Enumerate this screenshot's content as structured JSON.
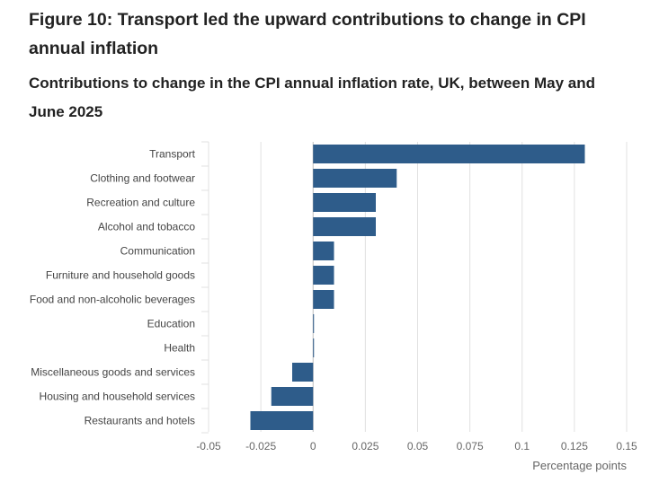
{
  "figure": {
    "title": "Figure 10: Transport led the upward contributions to change in CPI annual inflation",
    "subtitle": "Contributions to change in the CPI annual inflation rate, UK, between May and June 2025"
  },
  "colors": {
    "bar": "#2e5c8a",
    "grid": "#e0e0e0",
    "zero_line": "#bfbfbf",
    "text": "#444444",
    "axis_text": "#666666"
  },
  "chart_data": {
    "type": "bar",
    "orientation": "horizontal",
    "categories": [
      "Transport",
      "Clothing and footwear",
      "Recreation and culture",
      "Alcohol and tobacco",
      "Communication",
      "Furniture and household goods",
      "Food and non-alcoholic beverages",
      "Education",
      "Health",
      "Miscellaneous goods and services",
      "Housing and household services",
      "Restaurants and hotels"
    ],
    "values": [
      0.13,
      0.04,
      0.03,
      0.03,
      0.01,
      0.01,
      0.01,
      0.0,
      0.0,
      -0.01,
      -0.02,
      -0.03
    ],
    "xlim": [
      -0.05,
      0.15
    ],
    "ticks": [
      -0.05,
      -0.025,
      0,
      0.025,
      0.05,
      0.075,
      0.1,
      0.125,
      0.15
    ],
    "tick_labels": [
      "-0.05",
      "-0.025",
      "0",
      "0.025",
      "0.05",
      "0.075",
      "0.1",
      "0.125",
      "0.15"
    ],
    "xlabel": "Percentage points",
    "grid": true
  }
}
